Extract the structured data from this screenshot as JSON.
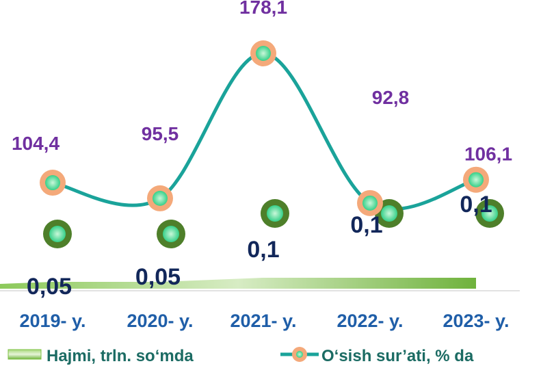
{
  "chart_data": {
    "type": "line",
    "categories": [
      "2019- y.",
      "2020- y.",
      "2021- y.",
      "2022- y.",
      "2023- y."
    ],
    "series": [
      {
        "name": "Hajmi, trln. so‘mda",
        "kind": "area",
        "values": [
          0.05,
          0.05,
          0.1,
          0.1,
          0.1
        ],
        "labels": [
          "0,05",
          "0,05",
          "0,1",
          "0,1",
          "0,1"
        ],
        "color": "#7dc142"
      },
      {
        "name": "O‘sish sur’ati, % da",
        "kind": "line",
        "values": [
          104.4,
          95.5,
          178.1,
          92.8,
          106.1
        ],
        "labels": [
          "104,4",
          "95,5",
          "178,1",
          "92,8",
          "106,1"
        ],
        "color": "#1aa39a",
        "marker_color": "#f4a97a"
      }
    ],
    "extra_markers": {
      "values": [
        0.05,
        0.05,
        0.1,
        0.1,
        0.1
      ],
      "color": "#4e7f2a"
    },
    "legend_position": "bottom",
    "grid": false,
    "colors": {
      "tick_labels": "#1f5ea8",
      "growth_labels": "#7030a0",
      "volume_labels": "#12275a",
      "legend_text": "#1b6b63"
    }
  }
}
